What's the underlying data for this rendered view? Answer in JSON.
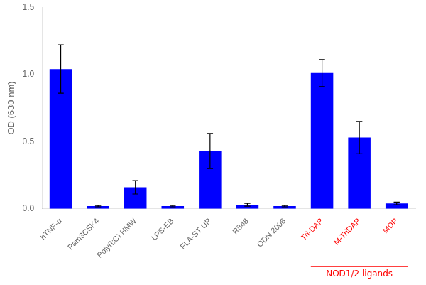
{
  "chart_data": {
    "type": "bar",
    "categories": [
      "hTNF-α",
      "Pam3CSK4",
      "Poly(I:C) HMW",
      "LPS-EB",
      "FLA-ST UP",
      "R848",
      "ODN 2006",
      "Tri-DAP",
      "M-TriDAP",
      "MDP"
    ],
    "values": [
      1.04,
      0.02,
      0.16,
      0.02,
      0.43,
      0.03,
      0.02,
      1.01,
      0.53,
      0.04
    ],
    "errors": [
      0.18,
      0.005,
      0.05,
      0.005,
      0.13,
      0.01,
      0.005,
      0.1,
      0.12,
      0.01
    ],
    "color": "#0000FF",
    "ylabel": "OD (630 nm)",
    "ylim": [
      0,
      1.5
    ],
    "yticks": [
      {
        "value": 0,
        "label": "0.0"
      },
      0.5,
      {
        "value": 1,
        "label": "1.0"
      },
      1.5
    ],
    "grid": false,
    "annotations": [
      {
        "text": "NOD1/2 ligands",
        "color": "#FF0000",
        "start": "Tri-DAP",
        "end": "MDP"
      }
    ]
  }
}
